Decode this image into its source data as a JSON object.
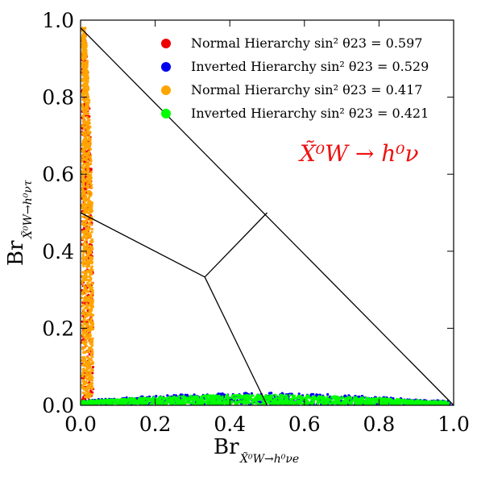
{
  "chart_data": {
    "type": "scatter",
    "title": "",
    "xlabel": "Br",
    "xlabel_subscript": "X̃⁰W→h⁰νe",
    "ylabel": "Br",
    "ylabel_subscript": "X̃⁰W→h⁰ντ",
    "xlim": [
      0.0,
      1.0
    ],
    "ylim": [
      0.0,
      1.0
    ],
    "xticks": [
      "0.0",
      "0.2",
      "0.4",
      "0.6",
      "0.8",
      "1.0"
    ],
    "yticks": [
      "0.0",
      "0.2",
      "0.4",
      "0.6",
      "0.8",
      "1.0"
    ],
    "grid": false,
    "legend_position": "top-right",
    "annotation": {
      "text": "X̃⁰W → h⁰ν",
      "color": "#ee1111"
    },
    "ternary_lines": [
      {
        "x": [
          0.0,
          1.0
        ],
        "y": [
          0.98,
          0.0
        ]
      },
      {
        "x": [
          0.0,
          0.333
        ],
        "y": [
          0.5,
          0.333
        ]
      },
      {
        "x": [
          0.333,
          0.5
        ],
        "y": [
          0.333,
          0.5
        ]
      },
      {
        "x": [
          0.333,
          0.5
        ],
        "y": [
          0.333,
          0.0
        ]
      }
    ],
    "series": [
      {
        "name": "Normal Hierarchy sin² θ23 = 0.597",
        "color": "#ee0000",
        "region": {
          "x_min": 0.0,
          "x_max": 0.03,
          "y_min": 0.0,
          "y_max": 0.97
        }
      },
      {
        "name": "Inverted Hierarchy sin² θ23 = 0.529",
        "color": "#0000ee",
        "region": {
          "x_min": 0.0,
          "x_max": 0.99,
          "y_min": 0.0,
          "y_max": 0.03
        }
      },
      {
        "name": "Normal Hierarchy sin² θ23 = 0.417",
        "color": "#ffa500",
        "region": {
          "x_min": 0.0,
          "x_max": 0.03,
          "y_min": 0.02,
          "y_max": 0.98
        }
      },
      {
        "name": "Inverted Hierarchy sin² θ23 = 0.421",
        "color": "#00ff00",
        "region": {
          "x_min": 0.0,
          "x_max": 0.99,
          "y_min": 0.0,
          "y_max": 0.025
        }
      }
    ]
  }
}
